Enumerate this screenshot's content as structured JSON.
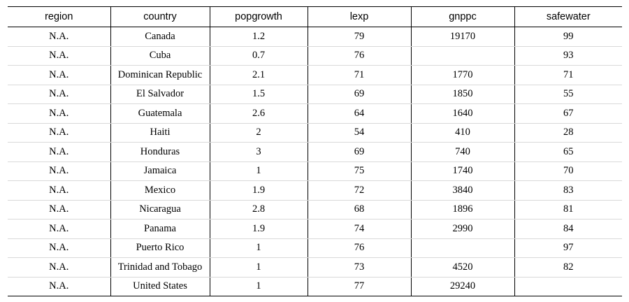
{
  "table": {
    "headers": [
      "region",
      "country",
      "popgrowth",
      "lexp",
      "gnppc",
      "safewater"
    ],
    "rows": [
      [
        "N.A.",
        "Canada",
        "1.2",
        "79",
        "19170",
        "99"
      ],
      [
        "N.A.",
        "Cuba",
        "0.7",
        "76",
        "",
        "93"
      ],
      [
        "N.A.",
        "Dominican Republic",
        "2.1",
        "71",
        "1770",
        "71"
      ],
      [
        "N.A.",
        "El Salvador",
        "1.5",
        "69",
        "1850",
        "55"
      ],
      [
        "N.A.",
        "Guatemala",
        "2.6",
        "64",
        "1640",
        "67"
      ],
      [
        "N.A.",
        "Haiti",
        "2",
        "54",
        "410",
        "28"
      ],
      [
        "N.A.",
        "Honduras",
        "3",
        "69",
        "740",
        "65"
      ],
      [
        "N.A.",
        "Jamaica",
        "1",
        "75",
        "1740",
        "70"
      ],
      [
        "N.A.",
        "Mexico",
        "1.9",
        "72",
        "3840",
        "83"
      ],
      [
        "N.A.",
        "Nicaragua",
        "2.8",
        "68",
        "1896",
        "81"
      ],
      [
        "N.A.",
        "Panama",
        "1.9",
        "74",
        "2990",
        "84"
      ],
      [
        "N.A.",
        "Puerto Rico",
        "1",
        "76",
        "",
        "97"
      ],
      [
        "N.A.",
        "Trinidad and Tobago",
        "1",
        "73",
        "4520",
        "82"
      ],
      [
        "N.A.",
        "United States",
        "1",
        "77",
        "29240",
        ""
      ]
    ]
  }
}
